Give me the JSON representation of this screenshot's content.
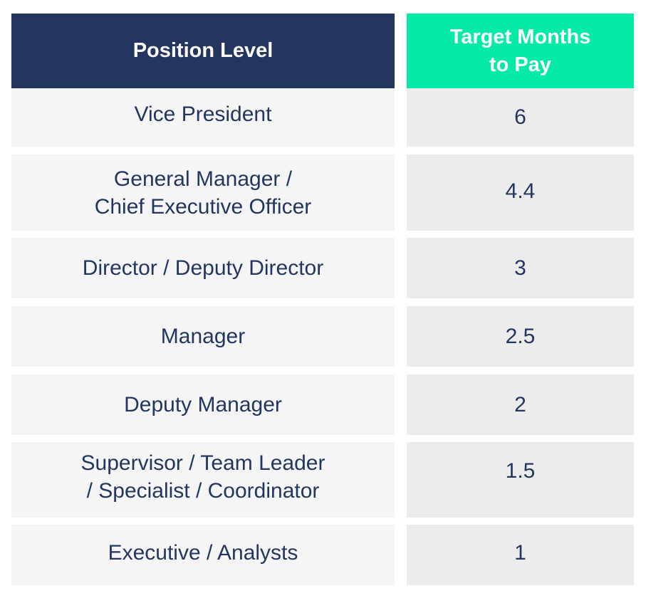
{
  "table": {
    "headers": {
      "position_level": "Position Level",
      "target_months": "Target Months\nto Pay"
    },
    "rows": [
      {
        "position": "Vice President",
        "months": "6"
      },
      {
        "position": "General Manager /\nChief Executive Officer",
        "months": "4.4"
      },
      {
        "position": "Director / Deputy Director",
        "months": "3"
      },
      {
        "position": "Manager",
        "months": "2.5"
      },
      {
        "position": "Deputy Manager",
        "months": "2"
      },
      {
        "position": "Supervisor / Team Leader\n/ Specialist / Coordinator",
        "months": "1.5"
      },
      {
        "position": "Executive / Analysts",
        "months": "1"
      }
    ]
  },
  "colors": {
    "header_left_bg": "#24355f",
    "header_right_bg": "#06eaa8",
    "row_left_bg": "#f5f5f5",
    "row_right_bg": "#ececec",
    "text_dark": "#24355f"
  }
}
